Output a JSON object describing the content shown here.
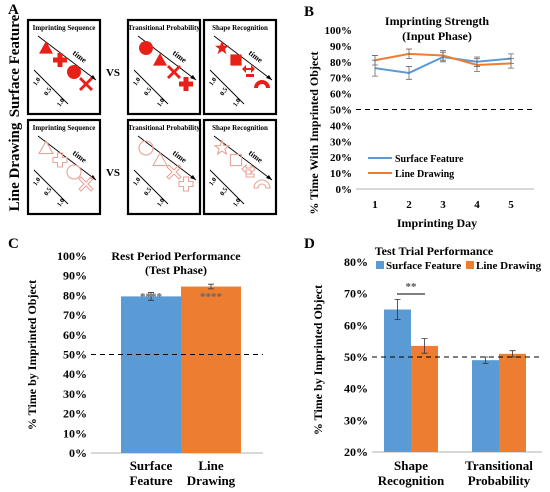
{
  "panelA": {
    "label": "A",
    "rows": [
      {
        "label": "Surface Feature",
        "style": "filled",
        "seq_title": "Imprinting Sequence",
        "vs": "VS",
        "trans_title": "Transitional Probability",
        "shape_title": "Shape Recognition",
        "time_label": "time",
        "ticks": [
          "1.0",
          "0.5",
          "1.0"
        ]
      },
      {
        "label": "Line Drawing",
        "style": "outline",
        "seq_title": "Imprinting Sequence",
        "vs": "VS",
        "trans_title": "Transitional Probability",
        "shape_title": "Shape Recognition",
        "time_label": "time",
        "ticks": [
          "1.0",
          "0.5",
          "1.0"
        ]
      }
    ],
    "colors": {
      "filled": "#e8201a",
      "outline": "#e8a59a"
    }
  },
  "panelB": {
    "label": "B",
    "chart_data": {
      "type": "line",
      "title": "Imprinting Strength",
      "subtitle": "(Input Phase)",
      "xlabel": "Imprinting Day",
      "ylabel": "% Time With Imprinted Object",
      "x": [
        1,
        2,
        3,
        4,
        5
      ],
      "xticks": [
        "1",
        "2",
        "3",
        "4",
        "5"
      ],
      "yticks": [
        "0%",
        "10%",
        "20%",
        "30%",
        "40%",
        "50%",
        "60%",
        "70%",
        "80%",
        "90%",
        "100%"
      ],
      "ylim": [
        0,
        100
      ],
      "reference_line": 50,
      "series": [
        {
          "name": "Surface Feature",
          "color": "#5b9bd5",
          "values": [
            76,
            73,
            83,
            80,
            82
          ],
          "errors": [
            5,
            4,
            3,
            3,
            3
          ]
        },
        {
          "name": "Line Drawing",
          "color": "#ed7d31",
          "values": [
            81,
            85,
            84,
            78,
            79
          ],
          "errors": [
            3,
            3,
            3,
            4,
            3
          ]
        }
      ],
      "legend": "lower-left"
    }
  },
  "panelC": {
    "label": "C",
    "chart_data": {
      "type": "bar",
      "title": "Rest Period Performance",
      "subtitle": "(Test Phase)",
      "ylabel": "% Time by Imprinted Object",
      "categories": [
        "Surface Feature",
        "Line Drawing"
      ],
      "category_lines": [
        [
          "Surface",
          "Feature"
        ],
        [
          "Line",
          "Drawing"
        ]
      ],
      "values": [
        79.5,
        84.5
      ],
      "errors": [
        2,
        1.2
      ],
      "colors": [
        "#5b9bd5",
        "#ed7d31"
      ],
      "annotations": [
        "****",
        "****"
      ],
      "yticks": [
        "0%",
        "10%",
        "20%",
        "30%",
        "40%",
        "50%",
        "60%",
        "70%",
        "80%",
        "90%",
        "100%"
      ],
      "ylim": [
        0,
        100
      ],
      "reference_line": 50
    }
  },
  "panelD": {
    "label": "D",
    "chart_data": {
      "type": "bar",
      "title": "Test Trial Performance",
      "ylabel": "% Time by Imprinted Object",
      "categories": [
        "Shape Recognition",
        "Transitional Probability"
      ],
      "category_lines": [
        [
          "Shape",
          "Recognition"
        ],
        [
          "Transitional",
          "Probability"
        ]
      ],
      "series": [
        {
          "name": "Surface Feature",
          "color": "#5b9bd5",
          "values": [
            65,
            49
          ],
          "errors": [
            3.2,
            1
          ]
        },
        {
          "name": "Line Drawing",
          "color": "#ed7d31",
          "values": [
            53.5,
            51
          ],
          "errors": [
            2.3,
            1
          ]
        }
      ],
      "significance": "**",
      "yticks": [
        "20%",
        "30%",
        "40%",
        "50%",
        "60%",
        "70%",
        "80%"
      ],
      "ylim": [
        20,
        80
      ],
      "reference_line": 50,
      "legend": "top"
    }
  }
}
